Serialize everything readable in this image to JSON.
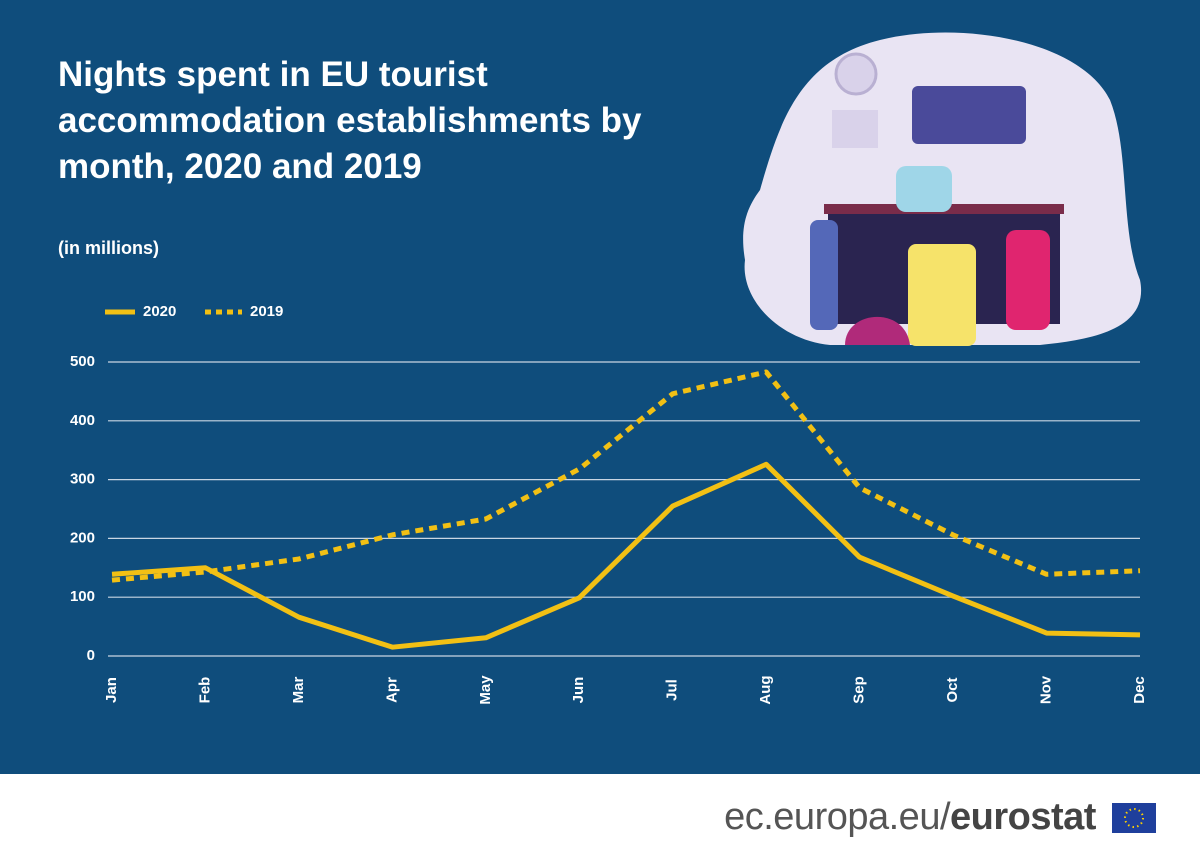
{
  "chart_data": {
    "type": "line",
    "title": "Nights spent in EU tourist accommodation establishments by month, 2020 and 2019",
    "subtitle": "(in millions)",
    "categories": [
      "Jan",
      "Feb",
      "Mar",
      "Apr",
      "May",
      "Jun",
      "Jul",
      "Aug",
      "Sep",
      "Oct",
      "Nov",
      "Dec"
    ],
    "series": [
      {
        "name": "2020",
        "color": "#f2c014",
        "dashed": false,
        "values": [
          139,
          150,
          66,
          15,
          31,
          99,
          255,
          326,
          168,
          102,
          39,
          36
        ]
      },
      {
        "name": "2019",
        "color": "#f2c014",
        "dashed": true,
        "values": [
          129,
          143,
          165,
          206,
          233,
          318,
          446,
          483,
          286,
          206,
          139,
          145
        ]
      }
    ],
    "ylim": [
      0,
      500
    ],
    "yticks": [
      0,
      100,
      200,
      300,
      400,
      500
    ],
    "grid": true,
    "legend": "top-left"
  },
  "footer": {
    "site": "ec.europa.eu/",
    "brand": "eurostat"
  }
}
